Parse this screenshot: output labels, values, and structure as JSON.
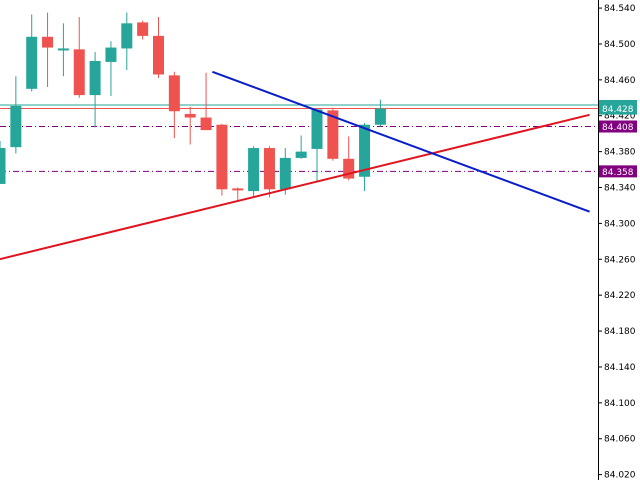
{
  "chart_data": {
    "type": "candlestick",
    "ylim": [
      84.014,
      84.549
    ],
    "y_ticks": [
      "84.540",
      "84.500",
      "84.460",
      "84.420",
      "84.380",
      "84.340",
      "84.300",
      "84.260",
      "84.220",
      "84.180",
      "84.140",
      "84.100",
      "84.060",
      "84.020"
    ],
    "grid": false,
    "colors": {
      "bullish": "#26a69a",
      "bearish": "#ef5350",
      "support_line": "#e0141e",
      "resistance_line": "#0a1ec8",
      "level_line": "#800080",
      "current_price_line": "#ef5350",
      "bid_line": "#26a69a"
    },
    "candles": [
      {
        "open": 84.344,
        "close": 84.384,
        "high": 84.392,
        "low": 84.344
      },
      {
        "open": 84.385,
        "close": 84.431,
        "high": 84.464,
        "low": 84.378
      },
      {
        "open": 84.45,
        "close": 84.508,
        "high": 84.533,
        "low": 84.447
      },
      {
        "open": 84.508,
        "close": 84.496,
        "high": 84.535,
        "low": 84.452
      },
      {
        "open": 84.495,
        "close": 84.495,
        "high": 84.523,
        "low": 84.464
      },
      {
        "open": 84.494,
        "close": 84.443,
        "high": 84.53,
        "low": 84.44
      },
      {
        "open": 84.443,
        "close": 84.481,
        "high": 84.491,
        "low": 84.407
      },
      {
        "open": 84.48,
        "close": 84.496,
        "high": 84.503,
        "low": 84.442
      },
      {
        "open": 84.495,
        "close": 84.523,
        "high": 84.535,
        "low": 84.471
      },
      {
        "open": 84.524,
        "close": 84.509,
        "high": 84.526,
        "low": 84.505
      },
      {
        "open": 84.509,
        "close": 84.466,
        "high": 84.53,
        "low": 84.462
      },
      {
        "open": 84.465,
        "close": 84.425,
        "high": 84.469,
        "low": 84.395
      },
      {
        "open": 84.422,
        "close": 84.418,
        "high": 84.43,
        "low": 84.388
      },
      {
        "open": 84.418,
        "close": 84.404,
        "high": 84.468,
        "low": 84.404
      },
      {
        "open": 84.41,
        "close": 84.338,
        "high": 84.411,
        "low": 84.331
      },
      {
        "open": 84.339,
        "close": 84.337,
        "high": 84.34,
        "low": 84.325
      },
      {
        "open": 84.336,
        "close": 84.384,
        "high": 84.386,
        "low": 84.33
      },
      {
        "open": 84.384,
        "close": 84.338,
        "high": 84.386,
        "low": 84.329
      },
      {
        "open": 84.338,
        "close": 84.373,
        "high": 84.384,
        "low": 84.332
      },
      {
        "open": 84.373,
        "close": 84.38,
        "high": 84.398,
        "low": 84.372
      },
      {
        "open": 84.383,
        "close": 84.427,
        "high": 84.428,
        "low": 84.346
      },
      {
        "open": 84.426,
        "close": 84.372,
        "high": 84.429,
        "low": 84.37
      },
      {
        "open": 84.372,
        "close": 84.35,
        "high": 84.397,
        "low": 84.348
      },
      {
        "open": 84.352,
        "close": 84.41,
        "high": 84.412,
        "low": 84.336
      },
      {
        "open": 84.41,
        "close": 84.428,
        "high": 84.438,
        "low": 84.408
      }
    ],
    "trendlines": [
      {
        "name": "support",
        "x0": -0.5,
        "y0": 84.258,
        "x1": 37.2,
        "y1": 84.421
      },
      {
        "name": "resistance",
        "x0": 13.4,
        "y0": 84.469,
        "x1": 37.2,
        "y1": 84.313
      }
    ],
    "levels": [
      {
        "price": 84.408,
        "label": "84.408",
        "style": "dashdot",
        "color": "#800080"
      },
      {
        "price": 84.358,
        "label": "84.358",
        "style": "dashdot",
        "color": "#800080"
      },
      {
        "price": 84.428,
        "label": "84.428",
        "style": "solid",
        "color": "#ef5350"
      }
    ],
    "bid_line_price": 84.432
  }
}
